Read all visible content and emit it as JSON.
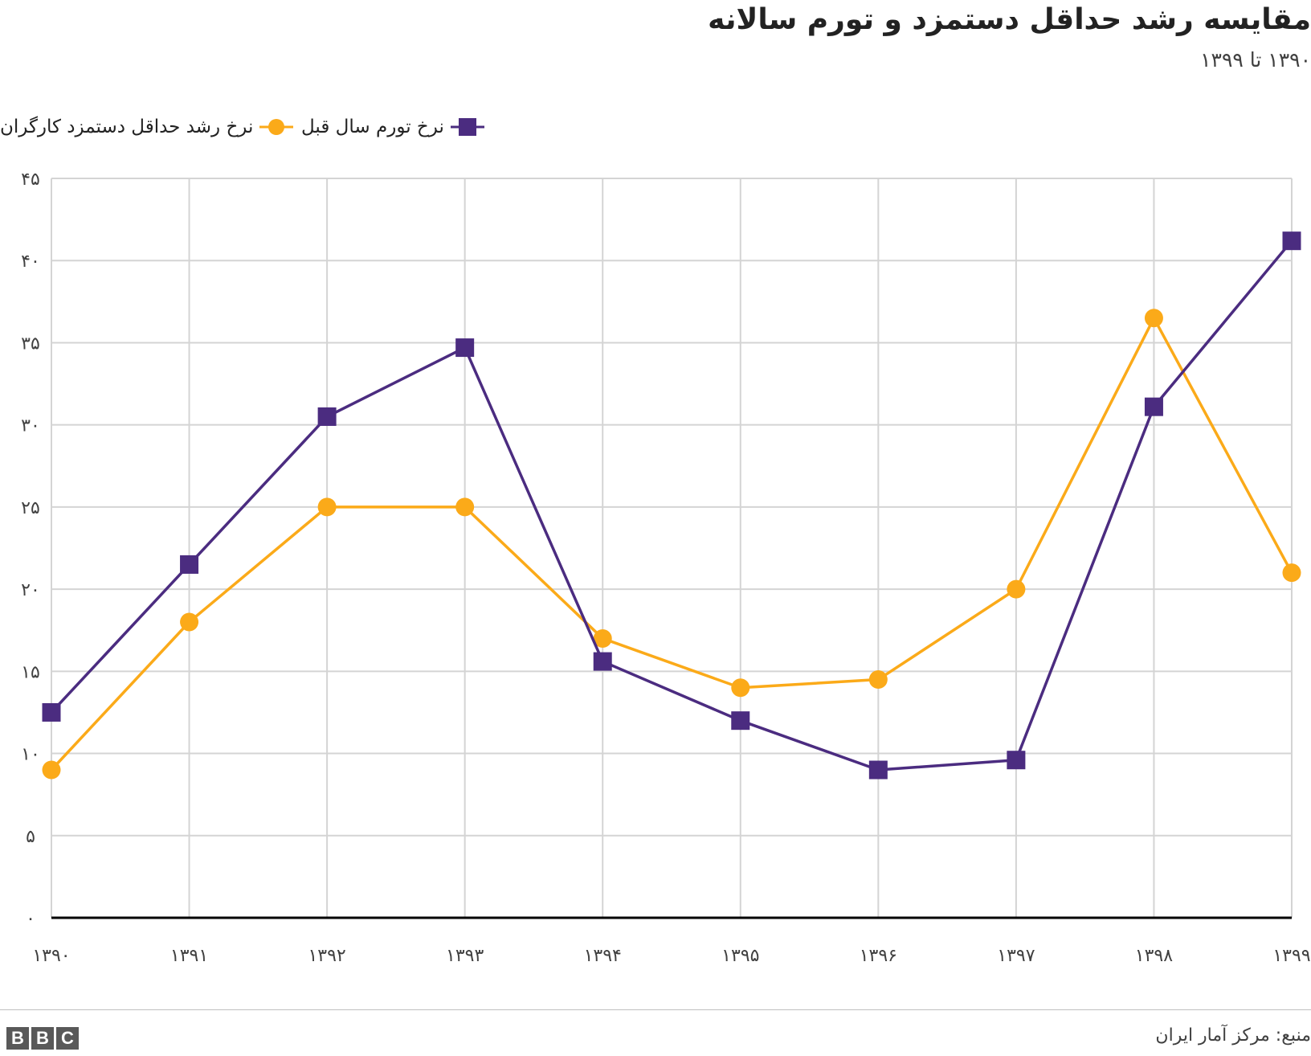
{
  "title": "مقایسه رشد حداقل دستمزد و تورم سالانه",
  "subtitle": "۱۳۹۰ تا ۱۳۹۹",
  "source": "منبع: مرکز آمار ایران",
  "logo": {
    "letters": [
      "B",
      "B",
      "C"
    ]
  },
  "colors": {
    "wage": "#fbaa19",
    "inflation": "#4b2c80",
    "grid": "#d4d4d4",
    "axis": "#000000"
  },
  "legend": [
    {
      "label": "نرخ رشد حداقل دستمزد کارگران",
      "color": "#fbaa19",
      "marker": "circle"
    },
    {
      "label": "نرخ تورم سال قبل",
      "color": "#4b2c80",
      "marker": "square"
    }
  ],
  "chart_data": {
    "type": "line",
    "title": "مقایسه رشد حداقل دستمزد و تورم سالانه",
    "subtitle": "۱۳۹۰ تا ۱۳۹۹",
    "categories": [
      "۱۳۹۰",
      "۱۳۹۱",
      "۱۳۹۲",
      "۱۳۹۳",
      "۱۳۹۴",
      "۱۳۹۵",
      "۱۳۹۶",
      "۱۳۹۷",
      "۱۳۹۸",
      "۱۳۹۹"
    ],
    "ylim": [
      0,
      45
    ],
    "yticks": [
      0,
      5,
      10,
      15,
      20,
      25,
      30,
      35,
      40,
      45
    ],
    "ytick_labels": [
      "۰",
      "۵",
      "۱۰",
      "۱۵",
      "۲۰",
      "۲۵",
      "۳۰",
      "۳۵",
      "۴۰",
      "۴۵"
    ],
    "grid": true,
    "legend_position": "top-left",
    "series": [
      {
        "name": "نرخ رشد حداقل دستمزد کارگران",
        "color": "#fbaa19",
        "marker": "circle",
        "values": [
          9,
          18,
          25,
          25,
          17,
          14,
          14.5,
          20,
          36.5,
          21
        ]
      },
      {
        "name": "نرخ تورم سال قبل",
        "color": "#4b2c80",
        "marker": "square",
        "values": [
          12.5,
          21.5,
          30.5,
          34.7,
          15.6,
          12,
          9,
          9.6,
          31.1,
          41.2
        ]
      }
    ]
  }
}
